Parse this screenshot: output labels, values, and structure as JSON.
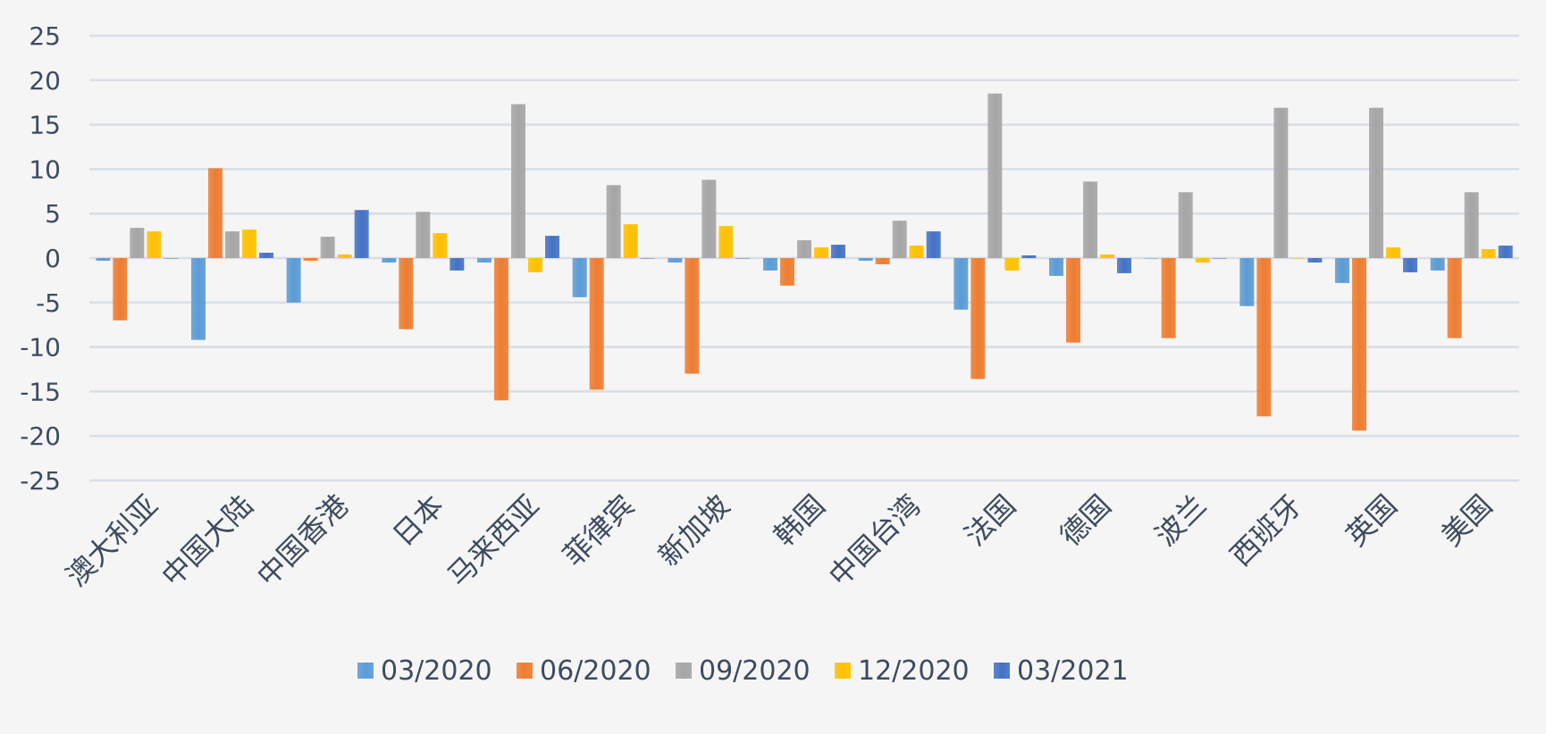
{
  "chart_data": {
    "type": "bar",
    "title": "",
    "xlabel": "",
    "ylabel": "",
    "ylim": [
      -25,
      25
    ],
    "yticks": [
      25,
      20,
      15,
      10,
      5,
      0,
      -5,
      -10,
      -15,
      -20,
      -25
    ],
    "grid": true,
    "legend_position": "bottom",
    "categories": [
      "澳大利亚",
      "中国大陆",
      "中国香港",
      "日本",
      "马来西亚",
      "菲律宾",
      "新加坡",
      "韩国",
      "中国台湾",
      "法国",
      "德国",
      "波兰",
      "西班牙",
      "英国",
      "美国"
    ],
    "series": [
      {
        "name": "03/2020",
        "color": "#5b9bd5",
        "values": [
          -0.3,
          -9.2,
          -5.0,
          -0.5,
          -0.5,
          -4.4,
          -0.5,
          -1.4,
          -0.3,
          -5.8,
          -2.0,
          0,
          -5.4,
          -2.8,
          -1.4
        ]
      },
      {
        "name": "06/2020",
        "color": "#ed7d31",
        "values": [
          -7.0,
          10.1,
          -0.3,
          -8.0,
          -16.0,
          -14.8,
          -13.0,
          -3.1,
          -0.7,
          -13.6,
          -9.5,
          -9.0,
          -17.8,
          -19.4,
          -9.0
        ]
      },
      {
        "name": "09/2020",
        "color": "#a5a5a5",
        "values": [
          3.4,
          3.0,
          2.4,
          5.2,
          17.3,
          8.2,
          8.8,
          2.0,
          4.2,
          18.5,
          8.6,
          7.4,
          16.9,
          16.9,
          7.4
        ]
      },
      {
        "name": "12/2020",
        "color": "#ffc000",
        "values": [
          3.0,
          3.2,
          0.4,
          2.8,
          -1.6,
          3.8,
          3.6,
          1.2,
          1.4,
          -1.4,
          0.4,
          -0.5,
          0,
          1.2,
          1.0
        ]
      },
      {
        "name": "03/2021",
        "color": "#4472c4",
        "values": [
          0,
          0.6,
          5.4,
          -1.4,
          2.5,
          0,
          0,
          1.5,
          3.0,
          0.3,
          -1.7,
          0,
          -0.5,
          -1.6,
          1.4
        ]
      }
    ]
  }
}
